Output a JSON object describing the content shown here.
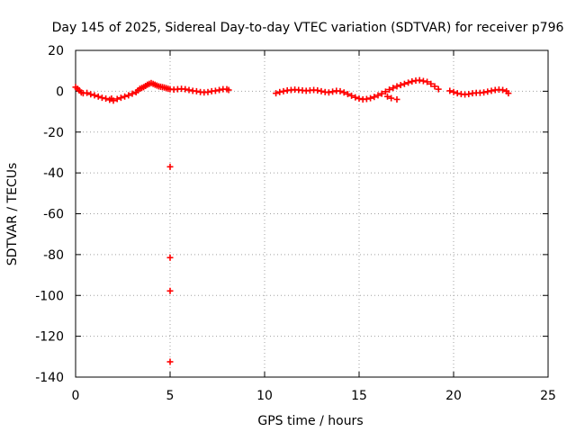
{
  "chart_data": {
    "type": "scatter",
    "title": "Day 145 of 2025, Sidereal Day-to-day VTEC variation (SDTVAR) for receiver p796",
    "xlabel": "GPS time / hours",
    "ylabel": "SDTVAR / TECUs",
    "xlim": [
      0,
      25
    ],
    "ylim": [
      -140,
      20
    ],
    "xticks": [
      0,
      5,
      10,
      15,
      20,
      25
    ],
    "yticks": [
      20,
      0,
      -20,
      -40,
      -60,
      -80,
      -100,
      -120,
      -140
    ],
    "grid": true,
    "marker": "plus",
    "color": "#ff0000",
    "series": [
      {
        "name": "SDTVAR p796",
        "points": [
          [
            0.0,
            2.0
          ],
          [
            0.1,
            1.2
          ],
          [
            0.2,
            0.4
          ],
          [
            0.3,
            -0.6
          ],
          [
            0.4,
            -1.0
          ],
          [
            0.6,
            -0.8
          ],
          [
            0.8,
            -1.5
          ],
          [
            1.0,
            -2.0
          ],
          [
            1.2,
            -2.6
          ],
          [
            1.4,
            -3.2
          ],
          [
            1.6,
            -3.6
          ],
          [
            1.8,
            -4.2
          ],
          [
            1.9,
            -3.6
          ],
          [
            2.0,
            -4.6
          ],
          [
            2.2,
            -3.8
          ],
          [
            2.4,
            -3.2
          ],
          [
            2.6,
            -2.6
          ],
          [
            2.8,
            -2.0
          ],
          [
            3.0,
            -1.2
          ],
          [
            3.2,
            -0.5
          ],
          [
            3.3,
            0.4
          ],
          [
            3.4,
            1.2
          ],
          [
            3.5,
            1.6
          ],
          [
            3.6,
            2.0
          ],
          [
            3.7,
            2.6
          ],
          [
            3.8,
            3.2
          ],
          [
            3.9,
            3.6
          ],
          [
            4.0,
            4.0
          ],
          [
            4.1,
            3.6
          ],
          [
            4.2,
            3.2
          ],
          [
            4.3,
            2.8
          ],
          [
            4.4,
            2.4
          ],
          [
            4.5,
            2.2
          ],
          [
            4.6,
            2.0
          ],
          [
            4.7,
            1.8
          ],
          [
            4.8,
            1.5
          ],
          [
            4.9,
            1.2
          ],
          [
            5.0,
            1.0
          ],
          [
            5.2,
            0.8
          ],
          [
            5.4,
            1.0
          ],
          [
            5.6,
            1.2
          ],
          [
            5.8,
            1.0
          ],
          [
            6.0,
            0.6
          ],
          [
            6.2,
            0.2
          ],
          [
            6.4,
            0.0
          ],
          [
            6.6,
            -0.4
          ],
          [
            6.8,
            -0.6
          ],
          [
            7.0,
            -0.4
          ],
          [
            7.2,
            0.0
          ],
          [
            7.4,
            0.2
          ],
          [
            7.6,
            0.6
          ],
          [
            7.8,
            1.0
          ],
          [
            8.0,
            1.0
          ],
          [
            8.1,
            0.6
          ],
          [
            5.0,
            -37.0
          ],
          [
            5.0,
            -81.5
          ],
          [
            5.0,
            -97.8
          ],
          [
            5.0,
            -132.5
          ],
          [
            10.6,
            -1.0
          ],
          [
            10.8,
            -0.4
          ],
          [
            11.0,
            0.0
          ],
          [
            11.2,
            0.4
          ],
          [
            11.4,
            0.6
          ],
          [
            11.6,
            0.8
          ],
          [
            11.8,
            0.6
          ],
          [
            12.0,
            0.4
          ],
          [
            12.2,
            0.2
          ],
          [
            12.4,
            0.4
          ],
          [
            12.6,
            0.6
          ],
          [
            12.8,
            0.4
          ],
          [
            13.0,
            0.0
          ],
          [
            13.2,
            -0.4
          ],
          [
            13.4,
            -0.6
          ],
          [
            13.6,
            -0.2
          ],
          [
            13.8,
            0.2
          ],
          [
            14.0,
            0.0
          ],
          [
            14.2,
            -0.6
          ],
          [
            14.4,
            -1.4
          ],
          [
            14.6,
            -2.2
          ],
          [
            14.8,
            -3.0
          ],
          [
            15.0,
            -3.6
          ],
          [
            15.2,
            -4.0
          ],
          [
            15.4,
            -3.8
          ],
          [
            15.6,
            -3.4
          ],
          [
            15.8,
            -2.8
          ],
          [
            16.0,
            -2.0
          ],
          [
            16.2,
            -1.2
          ],
          [
            16.4,
            -0.2
          ],
          [
            16.6,
            0.8
          ],
          [
            16.8,
            1.6
          ],
          [
            17.0,
            2.4
          ],
          [
            17.2,
            3.0
          ],
          [
            17.4,
            3.6
          ],
          [
            17.6,
            4.2
          ],
          [
            17.8,
            4.8
          ],
          [
            18.0,
            5.2
          ],
          [
            18.2,
            5.4
          ],
          [
            18.4,
            5.0
          ],
          [
            18.6,
            4.6
          ],
          [
            18.8,
            3.6
          ],
          [
            19.0,
            2.4
          ],
          [
            19.2,
            1.0
          ],
          [
            16.5,
            -2.6
          ],
          [
            16.7,
            -3.4
          ],
          [
            17.0,
            -4.0
          ],
          [
            19.8,
            0.2
          ],
          [
            20.0,
            -0.4
          ],
          [
            20.2,
            -1.0
          ],
          [
            20.4,
            -1.4
          ],
          [
            20.6,
            -1.6
          ],
          [
            20.8,
            -1.4
          ],
          [
            21.0,
            -1.0
          ],
          [
            21.2,
            -0.8
          ],
          [
            21.4,
            -0.8
          ],
          [
            21.6,
            -0.6
          ],
          [
            21.8,
            -0.2
          ],
          [
            22.0,
            0.2
          ],
          [
            22.2,
            0.6
          ],
          [
            22.4,
            0.8
          ],
          [
            22.6,
            0.6
          ],
          [
            22.8,
            0.0
          ],
          [
            22.9,
            -1.0
          ]
        ]
      }
    ]
  }
}
